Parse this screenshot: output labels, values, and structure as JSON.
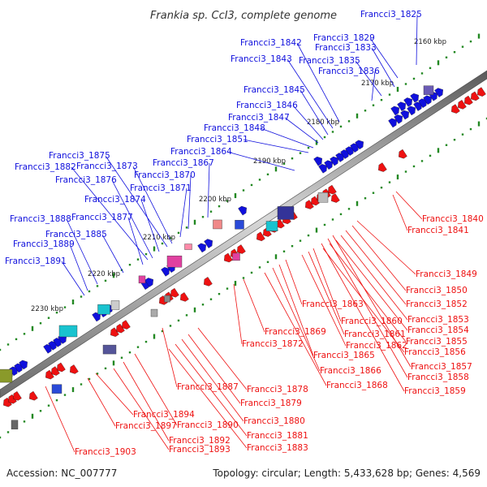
{
  "title": "Frankia sp. CcI3, complete genome",
  "footer": {
    "accession": "Accession: NC_007777",
    "summary": "Topology: circular; Length: 5,433,628 bp; Genes: 4,569"
  },
  "colors": {
    "forward_strand": "#1010dd",
    "reverse_strand": "#ee1111",
    "backbone": "#8c8c8c",
    "tick": "#228822"
  },
  "scale_labels": [
    "2160 kbp",
    "2170 kbp",
    "2180 kbp",
    "2190 kbp",
    "2200 kbp",
    "2210 kbp",
    "2220 kbp",
    "2230 kbp"
  ],
  "forward_genes": [
    "Francci3_1825",
    "Francci3_1829",
    "Francci3_1833",
    "Francci3_1835",
    "Francci3_1836",
    "Francci3_1842",
    "Francci3_1843",
    "Francci3_1845",
    "Francci3_1846",
    "Francci3_1847",
    "Francci3_1848",
    "Francci3_1851",
    "Francci3_1864",
    "Francci3_1867",
    "Francci3_1870",
    "Francci3_1871",
    "Francci3_1873",
    "Francci3_1874",
    "Francci3_1875",
    "Francci3_1876",
    "Francci3_1877",
    "Francci3_1882",
    "Francci3_1885",
    "Francci3_1888",
    "Francci3_1889",
    "Francci3_1891"
  ],
  "reverse_genes": [
    "Francci3_1840",
    "Francci3_1841",
    "Francci3_1849",
    "Francci3_1850",
    "Francci3_1852",
    "Francci3_1853",
    "Francci3_1854",
    "Francci3_1855",
    "Francci3_1856",
    "Francci3_1857",
    "Francci3_1858",
    "Francci3_1859",
    "Francci3_1860",
    "Francci3_1861",
    "Francci3_1862",
    "Francci3_1863",
    "Francci3_1865",
    "Francci3_1866",
    "Francci3_1868",
    "Francci3_1869",
    "Francci3_1872",
    "Francci3_1878",
    "Francci3_1879",
    "Francci3_1880",
    "Francci3_1881",
    "Francci3_1883",
    "Francci3_1887",
    "Francci3_1890",
    "Francci3_1892",
    "Francci3_1893",
    "Francci3_1894",
    "Francci3_1897",
    "Francci3_1903"
  ]
}
